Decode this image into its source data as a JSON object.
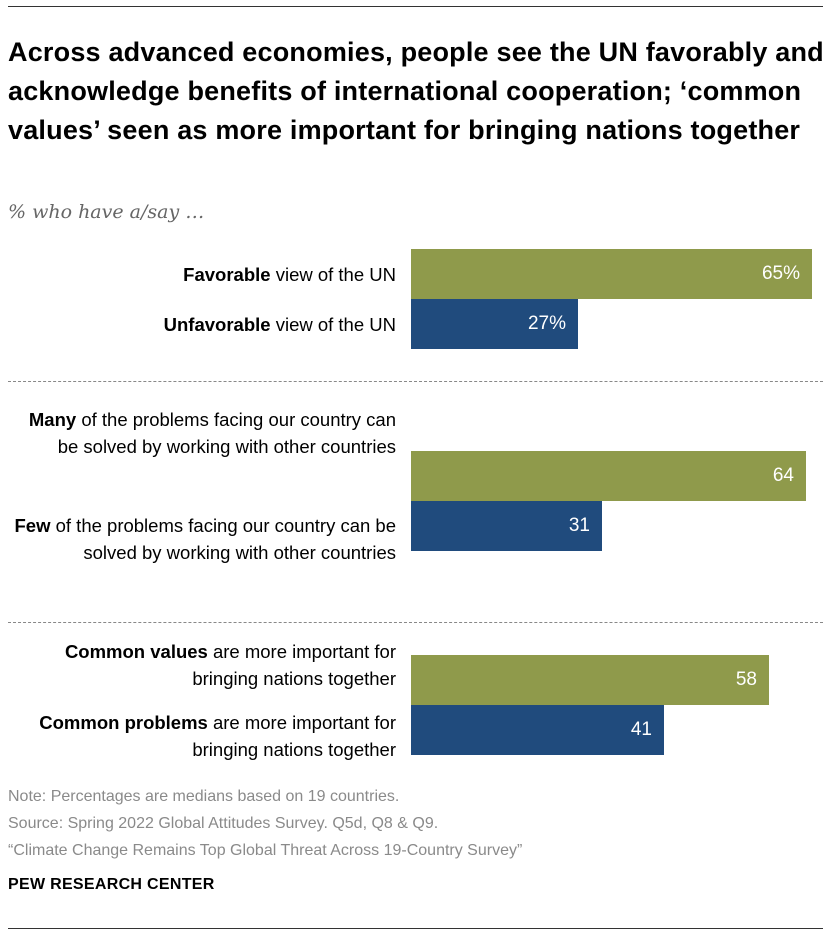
{
  "title": "Across advanced economies, people see the UN favorably and acknowledge benefits of international cooperation; ‘common values’ seen as more important for bringing nations together",
  "subtitle": "% who have a/say …",
  "colors": {
    "green": "#8f9a4b",
    "blue": "#204b7d"
  },
  "chart_data": {
    "type": "bar",
    "orientation": "horizontal",
    "xlim": [
      0,
      100
    ],
    "groups": [
      {
        "rows": [
          {
            "bold": "Favorable",
            "rest": " view of the UN",
            "value": 65,
            "value_label": "65%",
            "color": "green"
          },
          {
            "bold": "Unfavorable",
            "rest": " view of the UN",
            "value": 27,
            "value_label": "27%",
            "color": "blue"
          }
        ]
      },
      {
        "rows": [
          {
            "bold": "Many",
            "rest": " of the problems facing our country can be solved by working with other countries",
            "value": 64,
            "value_label": "64",
            "color": "green"
          },
          {
            "bold": "Few",
            "rest": " of the problems facing our country can be solved by working with other countries",
            "value": 31,
            "value_label": "31",
            "color": "blue"
          }
        ]
      },
      {
        "rows": [
          {
            "bold": "Common values",
            "rest": " are more important for bringing nations together",
            "value": 58,
            "value_label": "58",
            "color": "green"
          },
          {
            "bold": "Common problems",
            "rest": " are more important for bringing nations together",
            "value": 41,
            "value_label": "41",
            "color": "blue"
          }
        ]
      }
    ]
  },
  "notes": {
    "note": "Note: Percentages are medians based on 19 countries.",
    "source": "Source: Spring 2022 Global Attitudes Survey. Q5d, Q8 & Q9.",
    "report": "“Climate Change Remains Top Global Threat Across 19-Country Survey”"
  },
  "brand": "PEW RESEARCH CENTER"
}
